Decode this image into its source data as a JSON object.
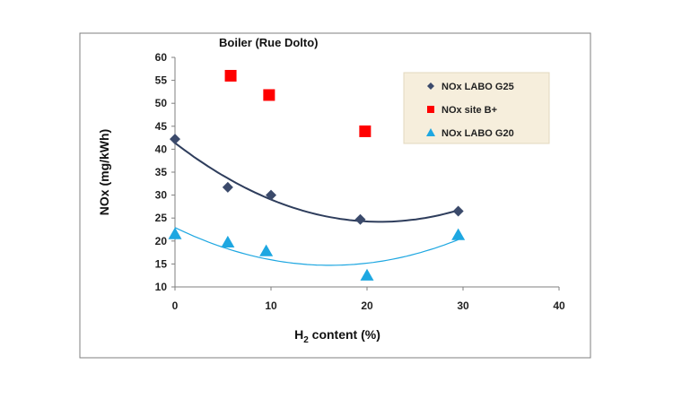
{
  "chart_data": {
    "type": "scatter",
    "title": "Boiler  (Rue Dolto)",
    "xlabel_main": "H",
    "xlabel_sub": "2",
    "xlabel_rest": " content (%)",
    "ylabel": "NOx  (mg/kWh)",
    "xlim": [
      0,
      40
    ],
    "ylim": [
      10,
      60
    ],
    "xticks": [
      0,
      10,
      20,
      30,
      40
    ],
    "yticks": [
      10,
      15,
      20,
      25,
      30,
      35,
      40,
      45,
      50,
      55,
      60
    ],
    "grid": false,
    "legend_position": "top-right",
    "series": [
      {
        "name": "NOx LABO G25",
        "marker": "diamond",
        "color": "#3B4A6B",
        "x": [
          0,
          5.5,
          10,
          19.3,
          29.5
        ],
        "y": [
          42.2,
          31.7,
          30,
          24.7,
          26.5
        ],
        "trendline": {
          "type": "poly2",
          "color": "#2E3D5C"
        }
      },
      {
        "name": "NOx site B+",
        "marker": "square",
        "color": "#FF0000",
        "x": [
          5.8,
          9.8,
          19.8
        ],
        "y": [
          56,
          51.8,
          43.9
        ]
      },
      {
        "name": "NOx LABO G20",
        "marker": "triangle",
        "color": "#1EA7E1",
        "x": [
          0,
          5.5,
          9.5,
          20,
          29.5
        ],
        "y": [
          21.5,
          19.7,
          17.8,
          12.5,
          21.3
        ],
        "trendline": {
          "type": "poly2",
          "color": "#1EA7E1"
        }
      }
    ]
  }
}
